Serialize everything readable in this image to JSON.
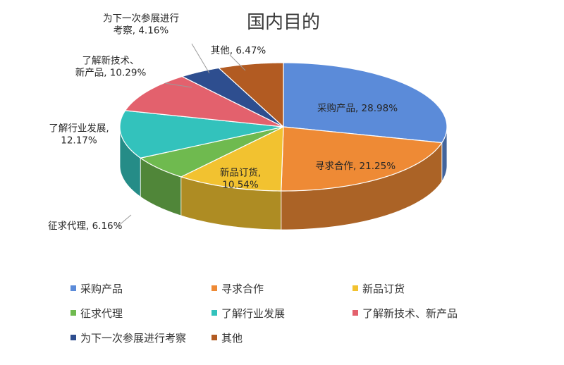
{
  "chart_data": {
    "type": "pie",
    "title": "国内目的",
    "three_d": true,
    "start_angle_deg": 90,
    "direction": "clockwise",
    "legend_position": "bottom",
    "slices": [
      {
        "name": "采购产品",
        "value": 28.98,
        "label": "采购产品, 28.98%",
        "color": "#5B8BD9"
      },
      {
        "name": "寻求合作",
        "value": 21.25,
        "label": "寻求合作, 21.25%",
        "color": "#EE8A35"
      },
      {
        "name": "新品订货",
        "value": 10.54,
        "label": "新品订货,\n10.54%",
        "color": "#F2C230"
      },
      {
        "name": "征求代理",
        "value": 6.16,
        "label": "征求代理, 6.16%",
        "color": "#6FBA4F"
      },
      {
        "name": "了解行业发展",
        "value": 12.17,
        "label": "了解行业发展,\n12.17%",
        "color": "#33C2BC"
      },
      {
        "name": "了解新技术、新产品",
        "value": 10.29,
        "label": "了解新技术、\n新产品, 10.29%",
        "color": "#E3616D"
      },
      {
        "name": "为下一次参展进行考察",
        "value": 4.16,
        "label": "为下一次参展进行\n考察, 4.16%",
        "color": "#2E4E8F"
      },
      {
        "name": "其他",
        "value": 6.47,
        "label": "其他, 6.47%",
        "color": "#B25B22"
      }
    ]
  }
}
